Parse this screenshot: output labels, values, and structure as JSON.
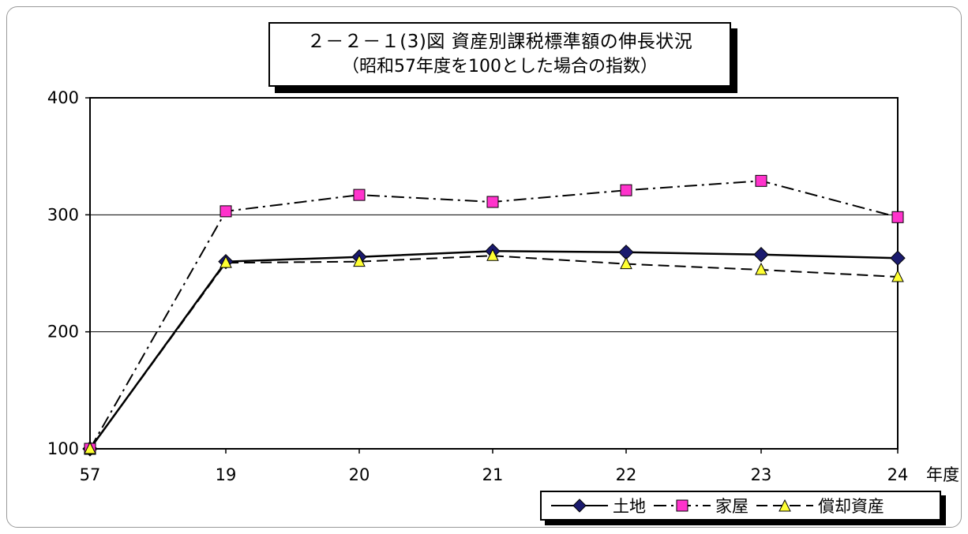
{
  "title": {
    "line1": "２－２－１(3)図 資産別課税標準額の伸長状況",
    "line2": "（昭和57年度を100とした場合の指数）"
  },
  "chart_data": {
    "type": "line",
    "categories": [
      "57",
      "19",
      "20",
      "21",
      "22",
      "23",
      "24"
    ],
    "xlabel": "年度",
    "ylabel": "",
    "ylim": [
      100,
      400
    ],
    "yticks": [
      100,
      200,
      300,
      400
    ],
    "grid": true,
    "legend_position": "bottom-right",
    "series": [
      {
        "name": "土地",
        "values": [
          100,
          260,
          264,
          269,
          268,
          266,
          263
        ],
        "color": "#1a1a6e",
        "marker": "diamond",
        "line": "solid",
        "marker_fill": "#1a1a6e"
      },
      {
        "name": "家屋",
        "values": [
          100,
          303,
          317,
          311,
          321,
          329,
          298
        ],
        "color": "#000000",
        "marker": "square",
        "line": "dashdot",
        "marker_fill": "#ff33cc"
      },
      {
        "name": "償却資産",
        "values": [
          100,
          259,
          260,
          265,
          258,
          253,
          247
        ],
        "color": "#000000",
        "marker": "triangle",
        "line": "dashed",
        "marker_fill": "#ffff33"
      }
    ]
  }
}
